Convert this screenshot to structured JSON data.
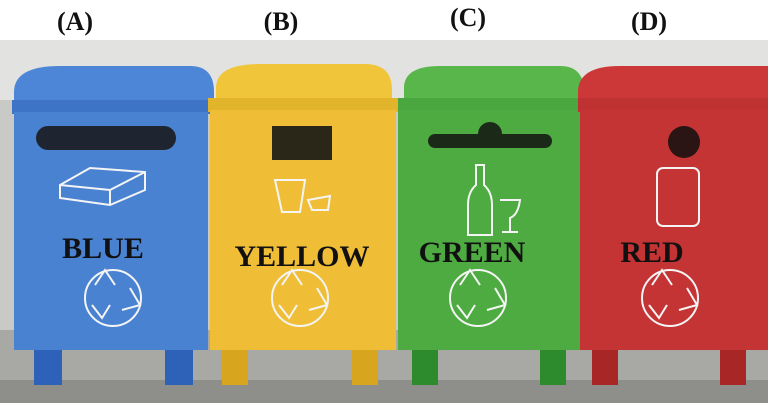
{
  "bins": [
    {
      "letter": "(A)",
      "label": "BLUE"
    },
    {
      "letter": "(B)",
      "label": "YELLOW"
    },
    {
      "letter": "(C)",
      "label": "GREEN"
    },
    {
      "letter": "(D)",
      "label": "RED"
    }
  ]
}
